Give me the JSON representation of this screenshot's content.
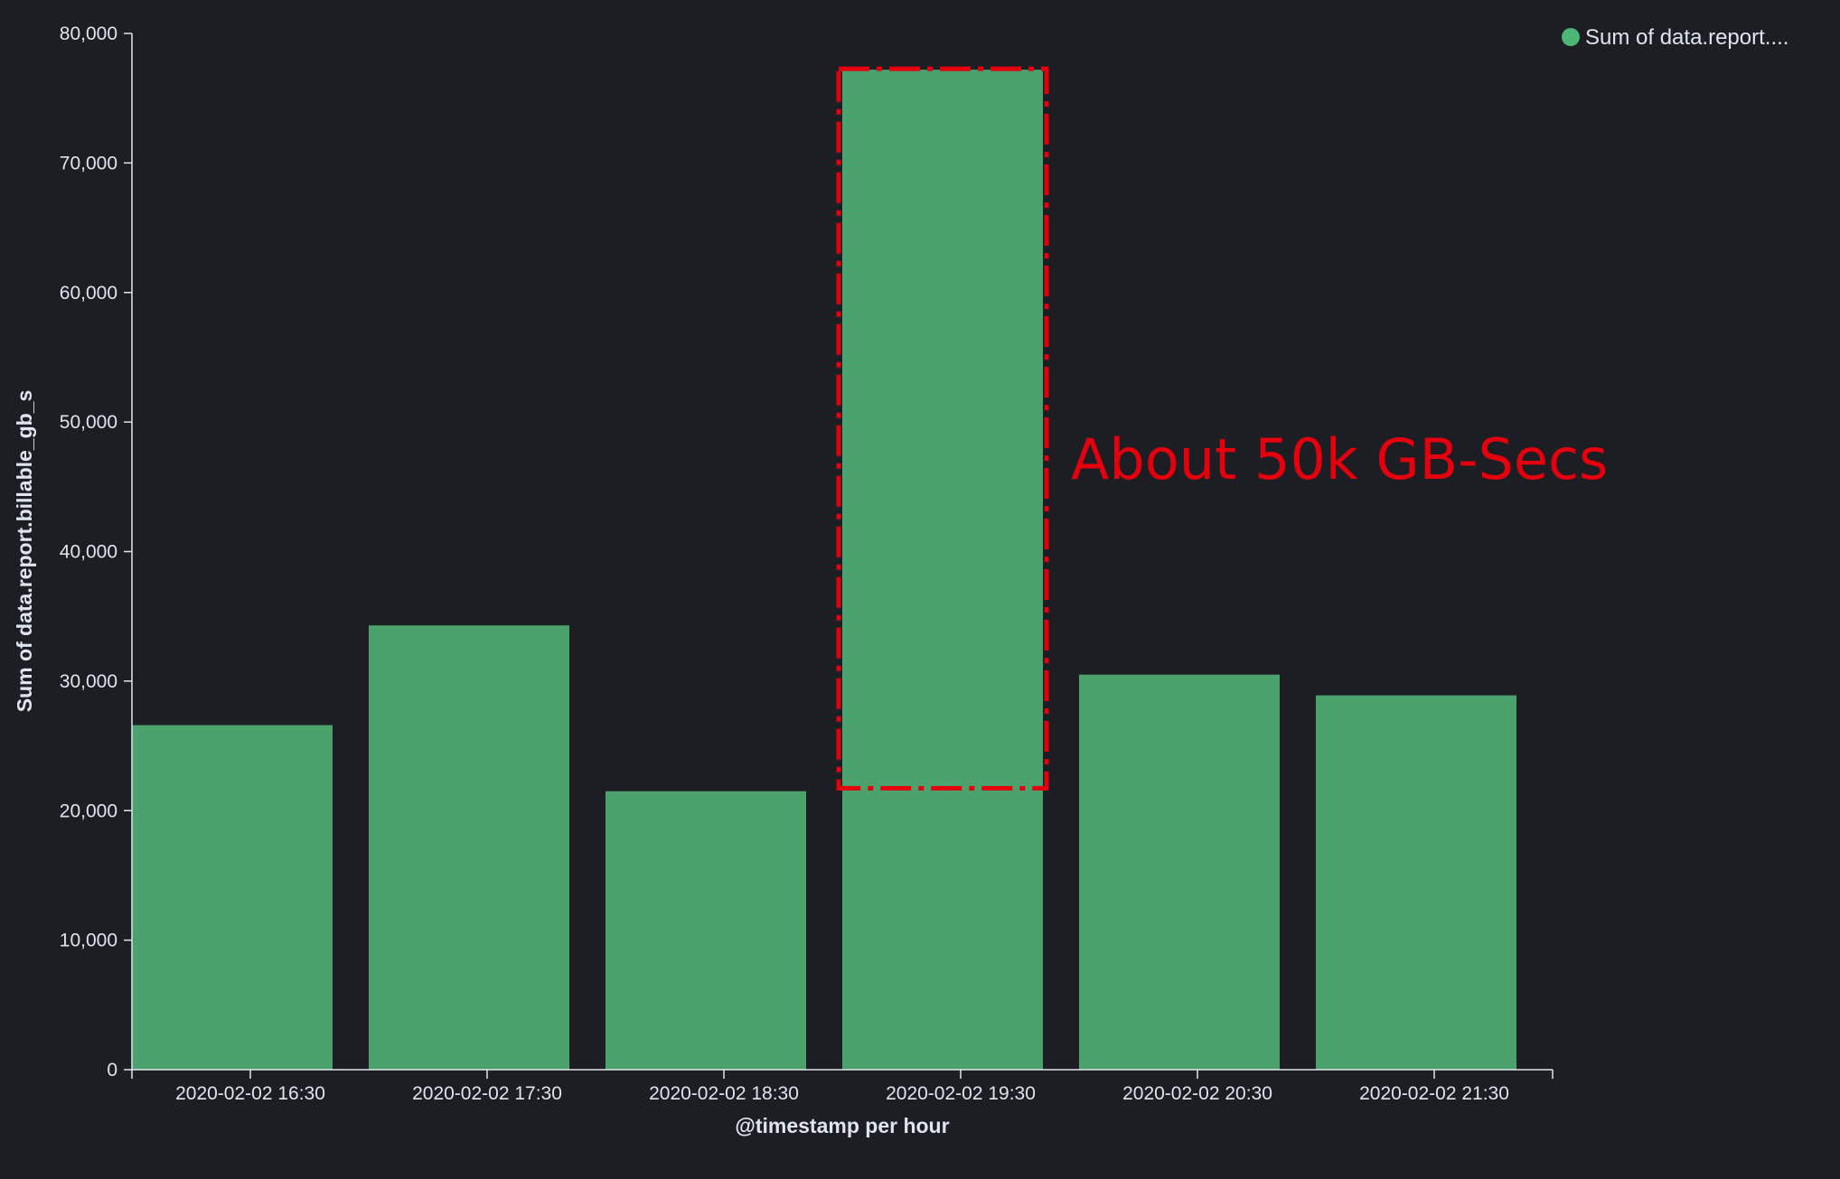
{
  "chart_data": {
    "type": "bar",
    "categories": [
      "2020-02-02 16:30",
      "2020-02-02 17:30",
      "2020-02-02 18:30",
      "2020-02-02 19:30",
      "2020-02-02 20:30",
      "2020-02-02 21:30"
    ],
    "series": [
      {
        "name": "Sum of data.report....",
        "values": [
          26600,
          34300,
          21500,
          77200,
          30500,
          28900
        ],
        "color": "#4ba26c"
      }
    ],
    "xlabel": "@timestamp per hour",
    "ylabel": "Sum of data.report.billable_gb_s",
    "ylim": [
      0,
      80000
    ],
    "yticks": [
      0,
      10000,
      20000,
      30000,
      40000,
      50000,
      60000,
      70000,
      80000
    ],
    "ytick_labels": [
      "0",
      "10,000",
      "20,000",
      "30,000",
      "40,000",
      "50,000",
      "60,000",
      "70,000",
      "80,000"
    ],
    "grid": false,
    "legend_position": "top-right",
    "annotation": {
      "text": "About 50k GB-Secs",
      "category": "2020-02-02 19:30",
      "y_range": [
        21800,
        77200
      ],
      "color": "#e5000e"
    },
    "background": "#1d1e24",
    "axis_color": "#dfe5ef"
  }
}
